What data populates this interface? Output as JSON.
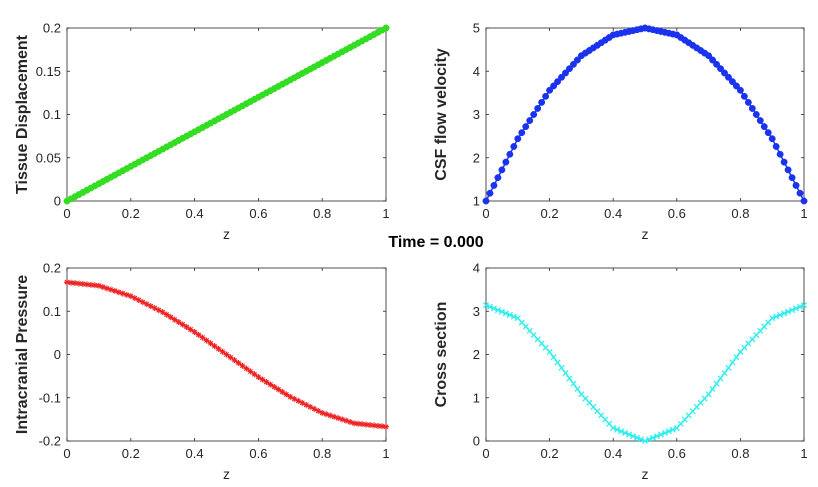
{
  "suptitle": "Time = 0.000",
  "chart_data": [
    {
      "type": "line",
      "xlabel": "z",
      "ylabel": "Tissue Displacement",
      "xlim": [
        0,
        1
      ],
      "ylim": [
        0,
        0.2
      ],
      "xticks": [
        "0",
        "0.2",
        "0.4",
        "0.6",
        "0.8",
        "1"
      ],
      "yticks": [
        "0",
        "0.05",
        "0.1",
        "0.15",
        "0.2"
      ],
      "color": "#33dd22",
      "marker": "o",
      "x": [
        0,
        0.1,
        0.2,
        0.3,
        0.4,
        0.5,
        0.6,
        0.7,
        0.8,
        0.9,
        1.0
      ],
      "values": [
        0,
        0.02,
        0.04,
        0.06,
        0.08,
        0.1,
        0.12,
        0.14,
        0.16,
        0.18,
        0.2
      ]
    },
    {
      "type": "line",
      "xlabel": "z",
      "ylabel": "CSF flow velocity",
      "xlim": [
        0,
        1
      ],
      "ylim": [
        1,
        5
      ],
      "xticks": [
        "0",
        "0.2",
        "0.4",
        "0.6",
        "0.8",
        "1"
      ],
      "yticks": [
        "1",
        "2",
        "3",
        "4",
        "5"
      ],
      "color": "#1a33ee",
      "marker": "o",
      "x": [
        0,
        0.1,
        0.2,
        0.3,
        0.4,
        0.5,
        0.6,
        0.7,
        0.8,
        0.9,
        1.0
      ],
      "values": [
        1.0,
        2.44,
        3.56,
        4.36,
        4.84,
        5.0,
        4.84,
        4.36,
        3.56,
        2.44,
        1.0
      ]
    },
    {
      "type": "line",
      "xlabel": "z",
      "ylabel": "Intracranial Pressure",
      "xlim": [
        0,
        1
      ],
      "ylim": [
        -0.2,
        0.2
      ],
      "xticks": [
        "0",
        "0.2",
        "0.4",
        "0.6",
        "0.8",
        "1"
      ],
      "yticks": [
        "-0.2",
        "-0.1",
        "0",
        "0.1",
        "0.2"
      ],
      "color": "#ee2222",
      "marker": "*",
      "x": [
        0,
        0.1,
        0.2,
        0.3,
        0.4,
        0.5,
        0.6,
        0.7,
        0.8,
        0.9,
        1.0
      ],
      "values": [
        0.167,
        0.159,
        0.135,
        0.098,
        0.052,
        0.0,
        -0.052,
        -0.098,
        -0.135,
        -0.159,
        -0.167
      ]
    },
    {
      "type": "line",
      "xlabel": "z",
      "ylabel": "Cross section",
      "xlim": [
        0,
        1
      ],
      "ylim": [
        0,
        4
      ],
      "xticks": [
        "0",
        "0.2",
        "0.4",
        "0.6",
        "0.8",
        "1"
      ],
      "yticks": [
        "0",
        "1",
        "2",
        "3",
        "4"
      ],
      "color": "#33eeee",
      "marker": "x",
      "x": [
        0,
        0.1,
        0.2,
        0.3,
        0.4,
        0.5,
        0.6,
        0.7,
        0.8,
        0.9,
        1.0
      ],
      "values": [
        3.14,
        2.84,
        2.06,
        1.08,
        0.3,
        0.0,
        0.3,
        1.08,
        2.06,
        2.84,
        3.14
      ]
    }
  ]
}
